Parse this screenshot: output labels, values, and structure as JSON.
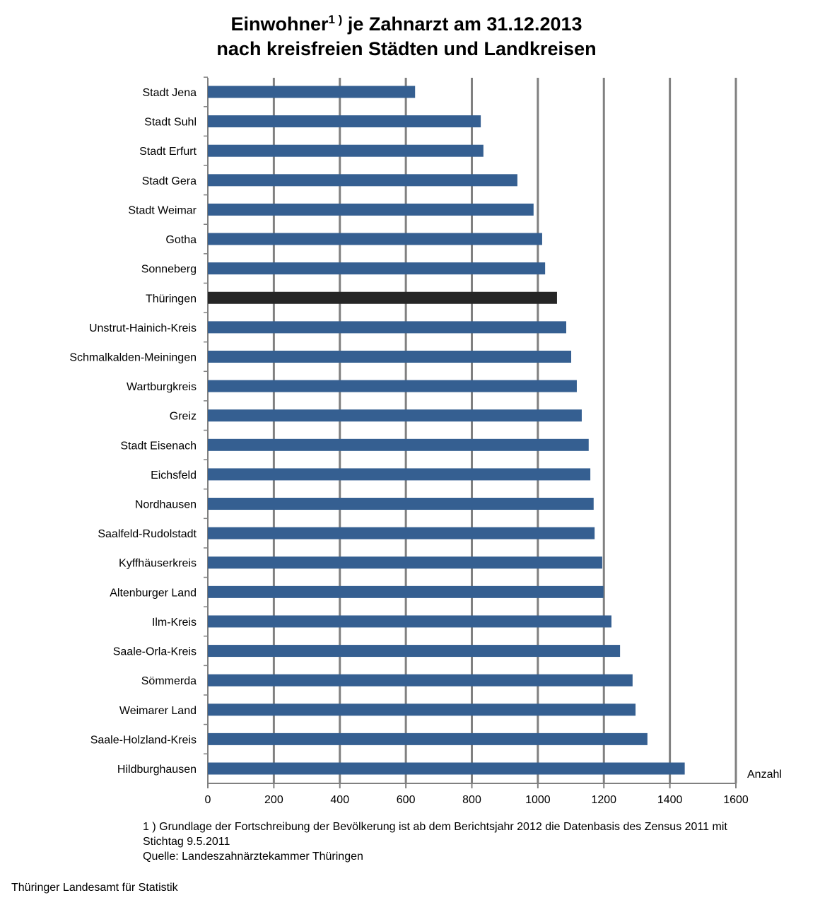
{
  "chart_data": {
    "type": "bar",
    "orientation": "horizontal",
    "title_line1_pre": "Einwohner",
    "title_sup": "1 )",
    "title_line1_post": " je Zahnarzt am 31.12.2013",
    "title_line2": "nach kreisfreien Städten und Landkreisen",
    "xlabel": "Anzahl",
    "xlim": [
      0,
      1600
    ],
    "xticks": [
      "0",
      "200",
      "400",
      "600",
      "800",
      "1000",
      "1200",
      "1400",
      "1600"
    ],
    "grid": true,
    "categories": [
      "Stadt Jena",
      "Stadt Suhl",
      "Stadt Erfurt",
      "Stadt Gera",
      "Stadt Weimar",
      "Gotha",
      "Sonneberg",
      "Thüringen",
      "Unstrut-Hainich-Kreis",
      "Schmalkalden-Meiningen",
      "Wartburgkreis",
      "Greiz",
      "Stadt Eisenach",
      "Eichsfeld",
      "Nordhausen",
      "Saalfeld-Rudolstadt",
      "Kyffhäuserkreis",
      "Altenburger Land",
      "Ilm-Kreis",
      "Saale-Orla-Kreis",
      "Sömmerda",
      "Weimarer Land",
      "Saale-Holzland-Kreis",
      "Hildburghausen"
    ],
    "values": [
      628,
      827,
      835,
      938,
      987,
      1013,
      1022,
      1058,
      1086,
      1101,
      1118,
      1133,
      1154,
      1159,
      1169,
      1172,
      1195,
      1199,
      1223,
      1249,
      1287,
      1296,
      1332,
      1445
    ],
    "highlight": "Thüringen",
    "colors": {
      "bar": "#355F91",
      "highlight": "#262626",
      "grid": "#808080"
    }
  },
  "footnotes": {
    "note1": "1 ) Grundlage der Fortschreibung der Bevölkerung ist ab dem Berichtsjahr 2012 die Datenbasis des Zensus 2011 mit",
    "note2": "Stichtag 9.5.2011",
    "source": "Quelle: Landeszahnärztekammer Thüringen",
    "publisher": "Thüringer Landesamt für Statistik"
  }
}
